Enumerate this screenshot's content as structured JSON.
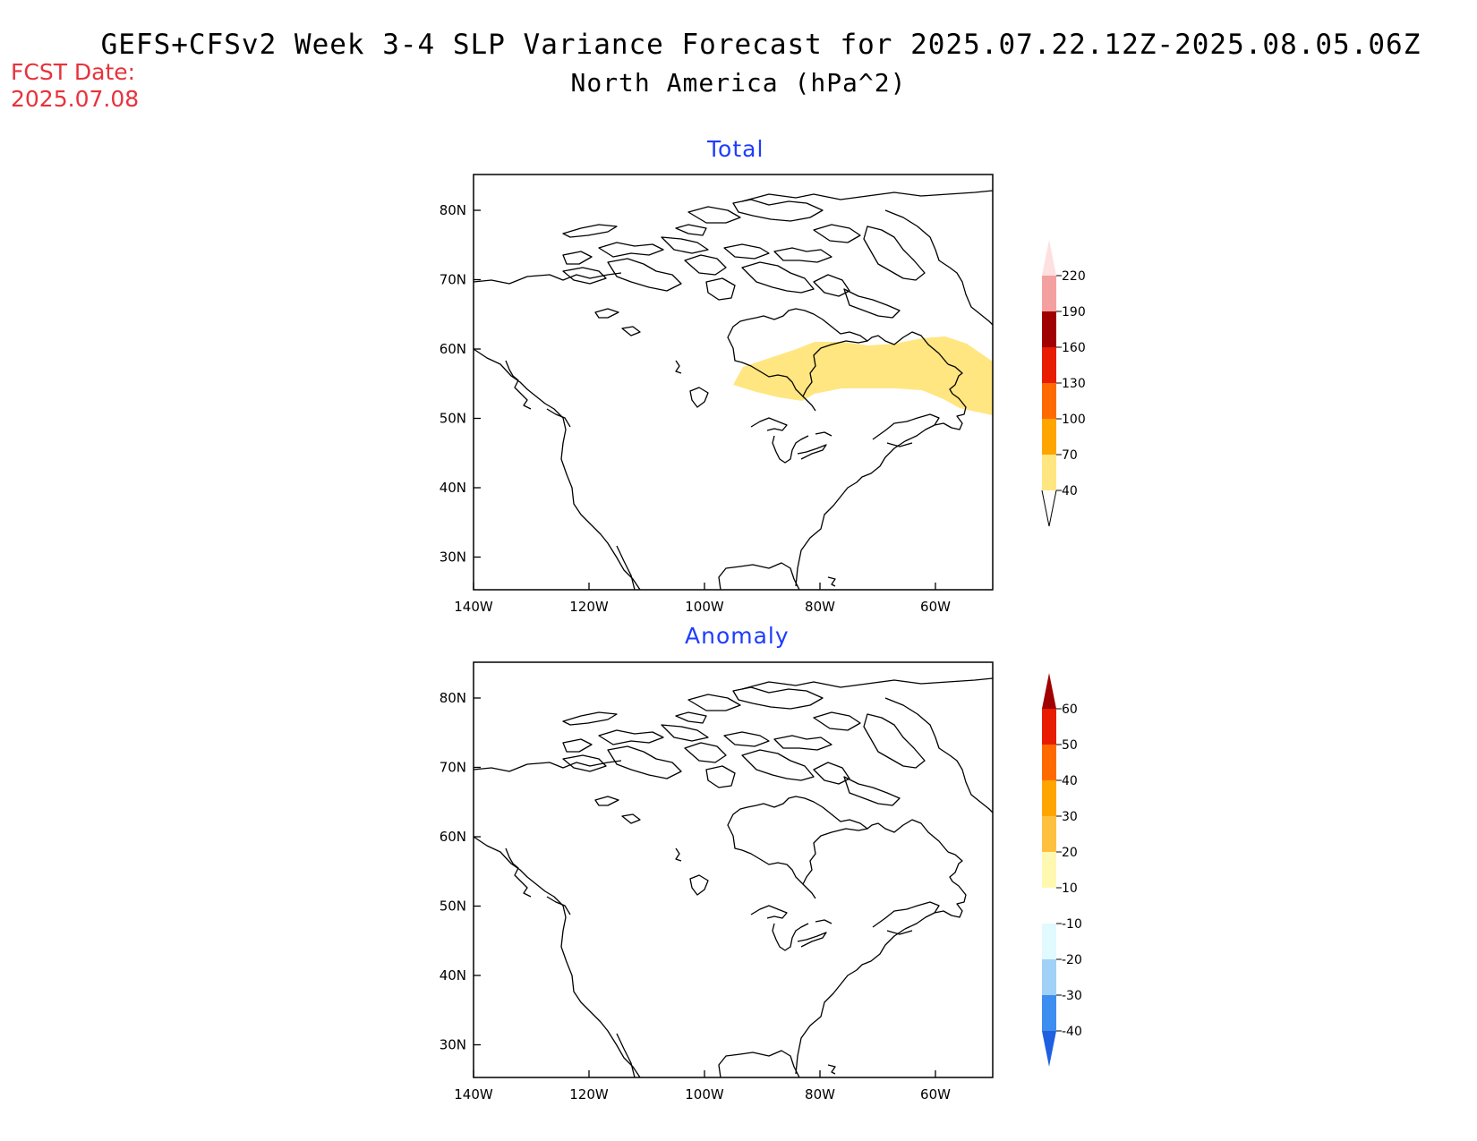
{
  "title": {
    "line1": "GEFS+CFSv2 Week 3-4 SLP Variance Forecast for 2025.07.22.12Z-2025.08.05.06Z",
    "line2": "North America (hPa^2)"
  },
  "fcst_date": {
    "label": "FCST Date:",
    "value": "2025.07.08"
  },
  "panels": [
    {
      "title": "Total",
      "lat_ticks": [
        "80N",
        "70N",
        "60N",
        "50N",
        "40N",
        "30N"
      ],
      "lon_ticks": [
        "140W",
        "120W",
        "100W",
        "80W",
        "60W"
      ],
      "colorbar": {
        "levels": [
          "40",
          "70",
          "100",
          "130",
          "160",
          "190",
          "220"
        ],
        "colors": [
          "#ffe680",
          "#ffa500",
          "#ff6a00",
          "#e81c00",
          "#a00000",
          "#f4a0a0",
          "#fde0e0"
        ]
      }
    },
    {
      "title": "Anomaly",
      "lat_ticks": [
        "80N",
        "70N",
        "60N",
        "50N",
        "40N",
        "30N"
      ],
      "lon_ticks": [
        "140W",
        "120W",
        "100W",
        "80W",
        "60W"
      ],
      "colorbar": {
        "levels": [
          "60",
          "50",
          "40",
          "30",
          "20",
          "10",
          "-10",
          "-20",
          "-30",
          "-40"
        ],
        "colors": [
          "#a00000",
          "#e81c00",
          "#ff6a00",
          "#ffa500",
          "#ffc040",
          "#fff8b0",
          "#ffffff",
          "#e0faff",
          "#a0d2f8",
          "#3c8ef0",
          "#1e60e0"
        ]
      }
    }
  ]
}
